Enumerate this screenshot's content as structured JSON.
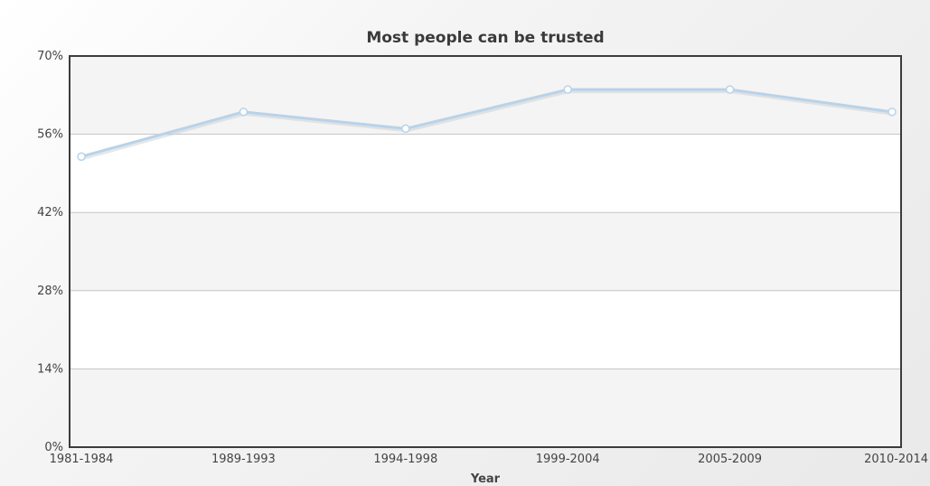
{
  "colors": {
    "line": "#b8d3ea",
    "line_shadow": "#c9c9c9",
    "marker_fill": "#ffffff",
    "marker_stroke": "#b8d3ea",
    "band_shade": "#f4f4f4",
    "band_plain": "#ffffff",
    "grid": "#c4c4c4",
    "frame": "#3c3c3c"
  },
  "chart_data": {
    "type": "line",
    "title": "Most people can be trusted",
    "xlabel": "Year",
    "ylabel": "",
    "categories": [
      "1981-1984",
      "1989-1993",
      "1994-1998",
      "1999-2004",
      "2005-2009",
      "2010-2014"
    ],
    "series": [
      {
        "values": [
          52,
          60,
          57,
          64,
          64,
          60
        ]
      }
    ],
    "ylim": [
      0,
      70
    ],
    "yticks": [
      0,
      14,
      28,
      42,
      56,
      70
    ],
    "ytick_labels": [
      "0%",
      "14%",
      "28%",
      "42%",
      "56%",
      "70%"
    ],
    "grid": true,
    "alternating_bands": true,
    "legend": "none"
  }
}
